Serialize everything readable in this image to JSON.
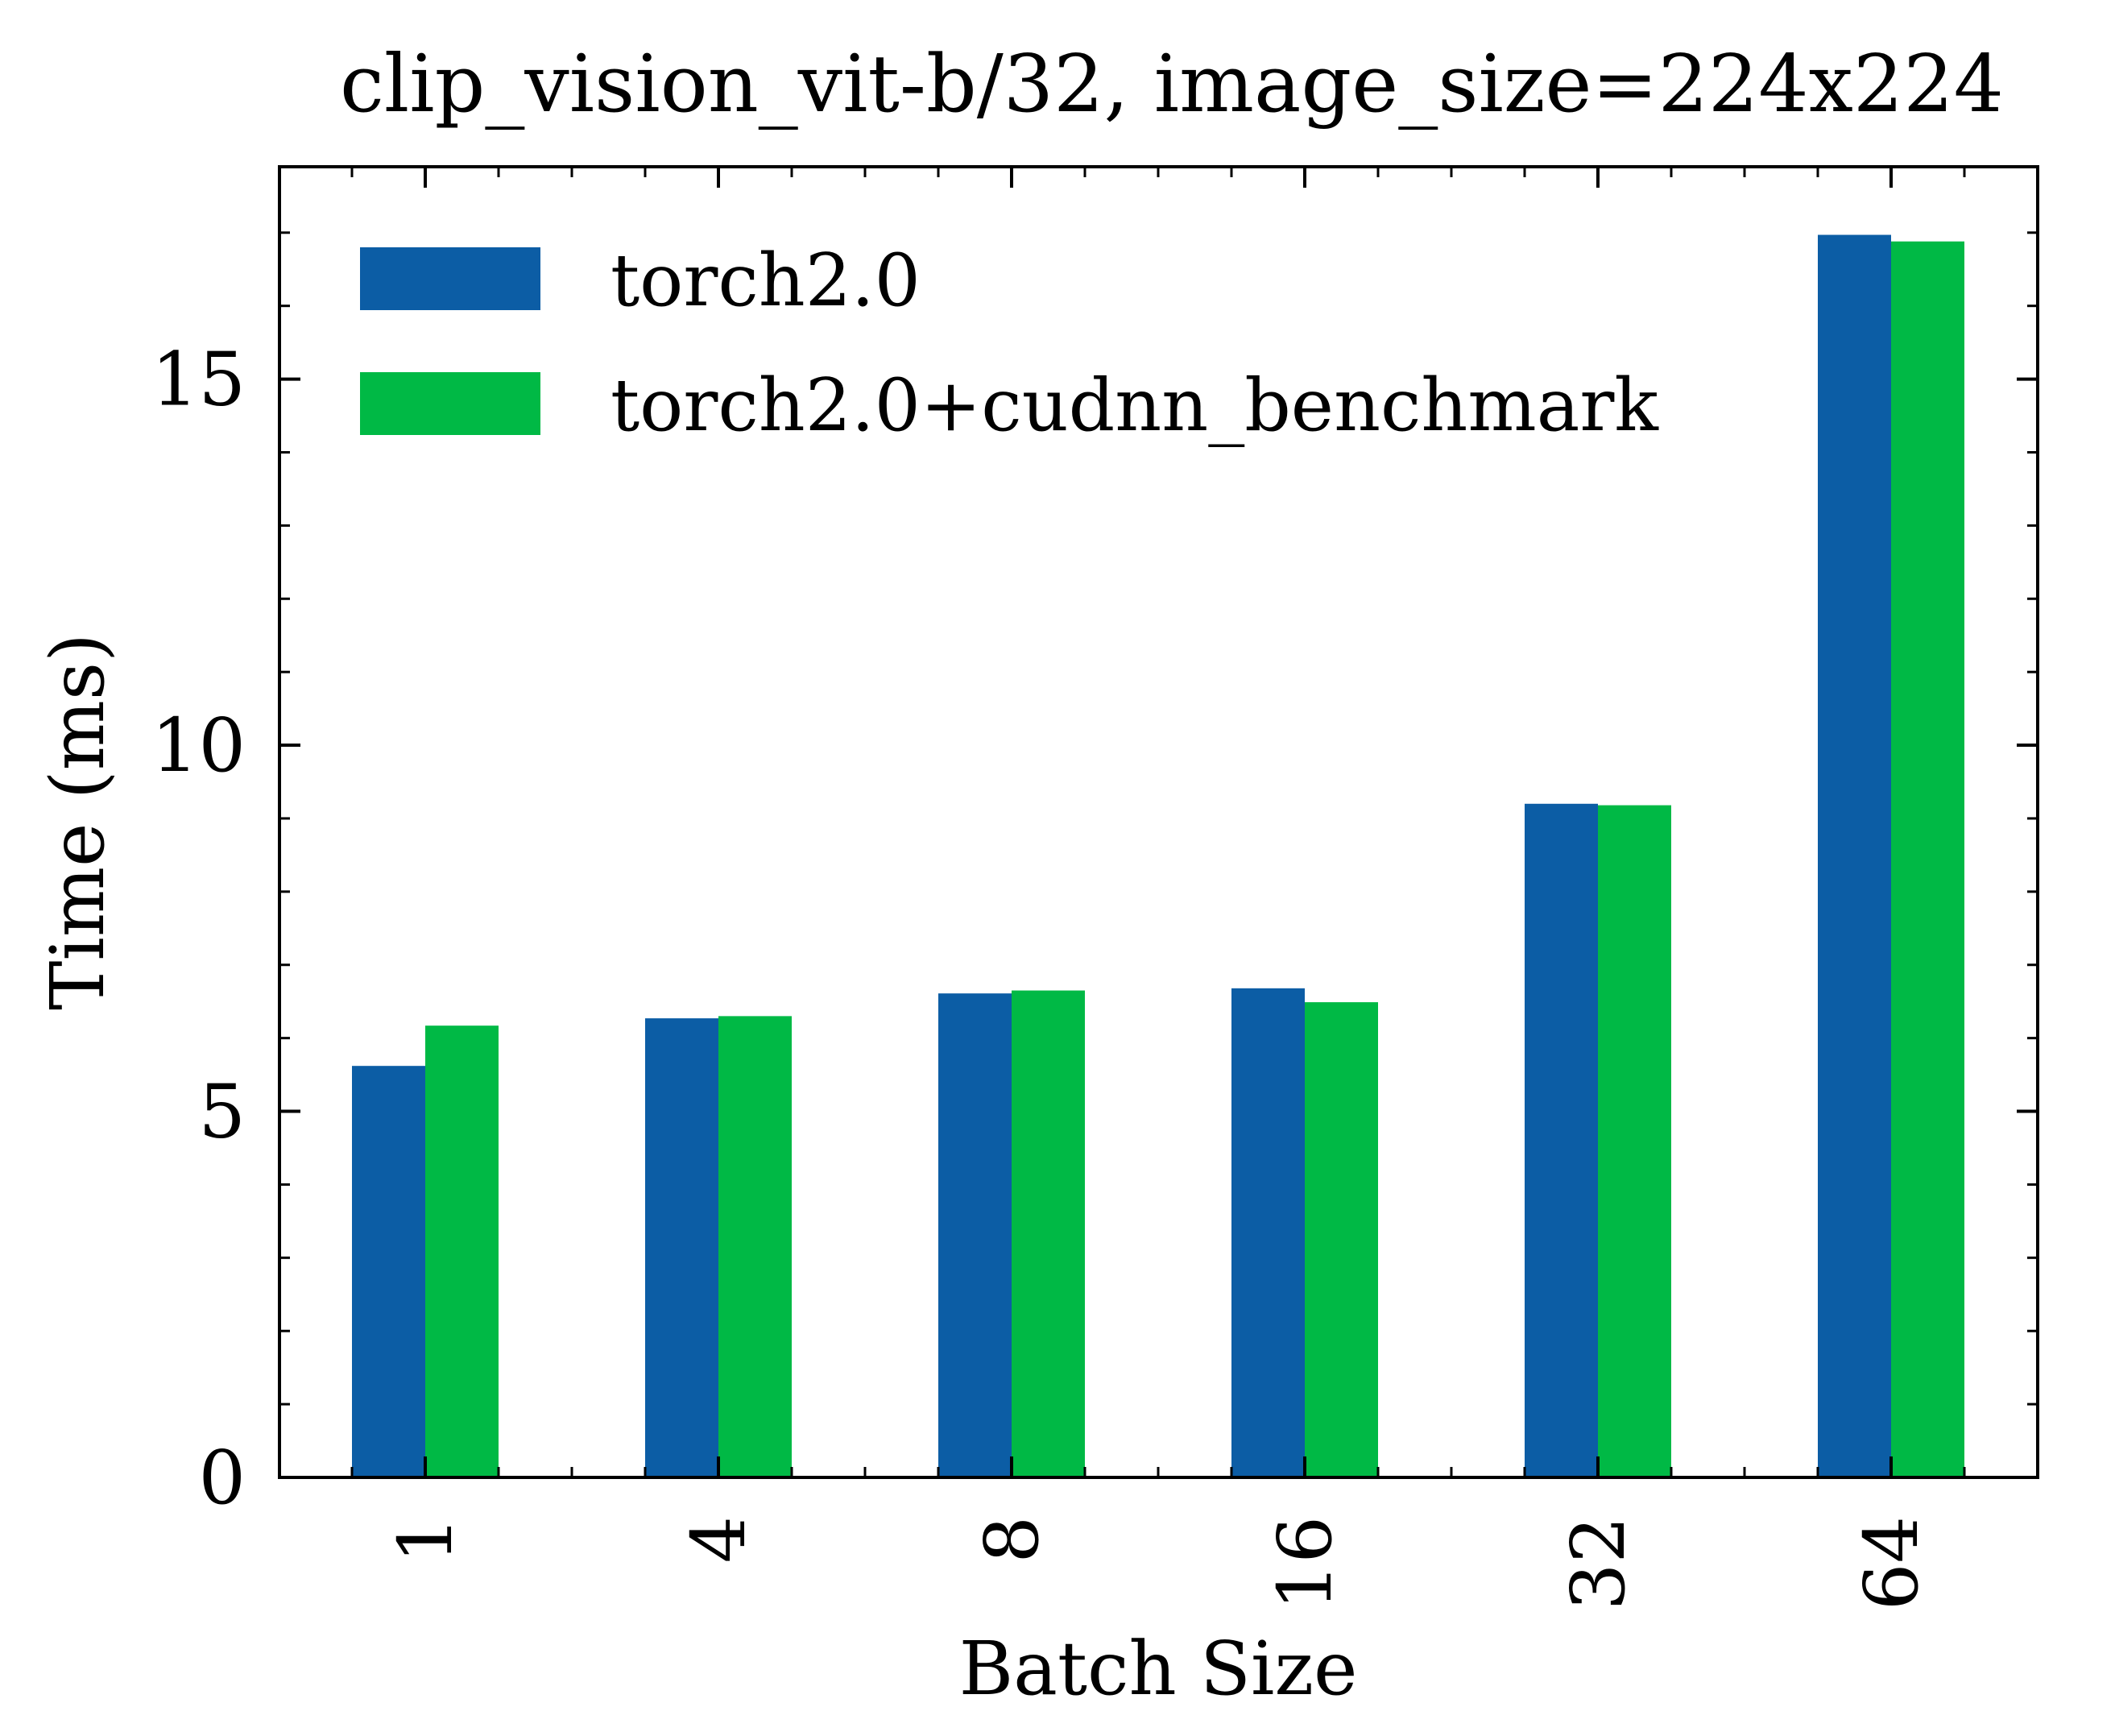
{
  "chart_data": {
    "type": "bar",
    "title": "clip_vision_vit-b/32, image_size=224x224",
    "xlabel": "Batch Size",
    "ylabel": "Time (ms)",
    "categories": [
      "1",
      "4",
      "8",
      "16",
      "32",
      "64"
    ],
    "series": [
      {
        "name": "torch2.0",
        "color": "#0C5DA5",
        "values": [
          5.62,
          6.27,
          6.61,
          6.68,
          9.2,
          16.97
        ]
      },
      {
        "name": "torch2.0+cudnn_benchmark",
        "color": "#00B945",
        "values": [
          6.17,
          6.3,
          6.65,
          6.49,
          9.18,
          16.88
        ]
      }
    ],
    "ylim": [
      0,
      17.9
    ],
    "yticks": [
      0,
      5,
      10,
      15
    ],
    "ytick_labels": [
      "0",
      "5",
      "10",
      "15"
    ],
    "grid": false,
    "legend": "top-left"
  }
}
